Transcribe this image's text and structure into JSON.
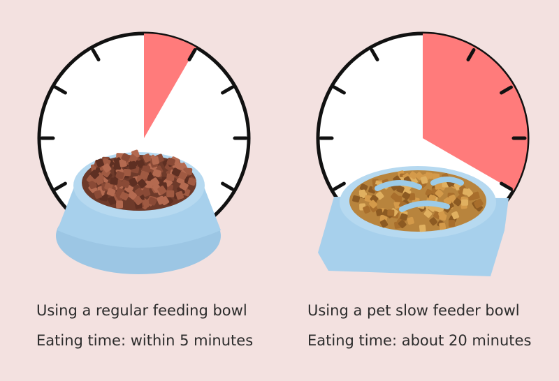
{
  "left": {
    "title": "Using a regular feeding bowl",
    "time": "Eating time: within 5 minutes"
  },
  "right": {
    "title": "Using a pet slow feeder bowl",
    "time": "Eating time: about 20 minutes"
  }
}
